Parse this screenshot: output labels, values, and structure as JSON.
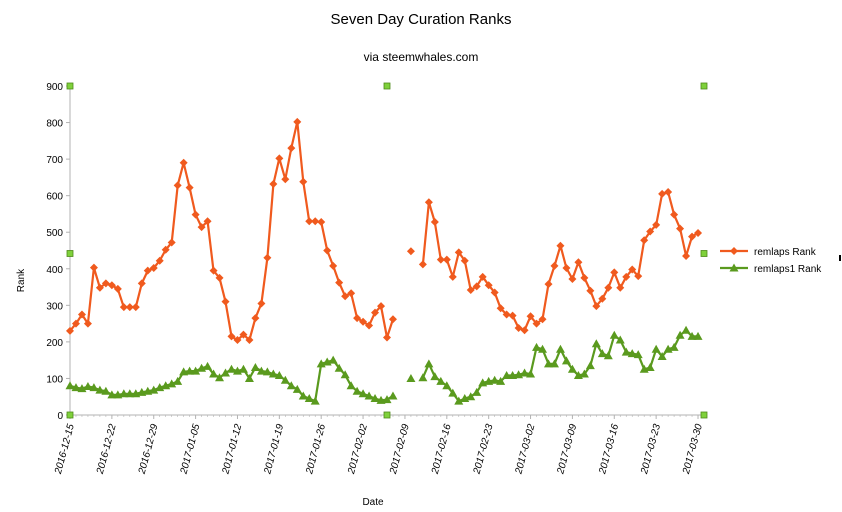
{
  "colors": {
    "series1": "#f05a1e",
    "series2": "#5a9a1e",
    "handle": "#7fd13b",
    "handle_border": "#4e8a1a",
    "axis": "#b3b3b3",
    "grid": "#dcdcdc"
  },
  "chart_data": {
    "type": "line",
    "title": "Seven Day Curation Ranks",
    "subtitle": "via steemwhales.com",
    "xlabel": "Date",
    "ylabel": "Rank",
    "ylim": [
      0,
      900
    ],
    "yticks": [
      0,
      100,
      200,
      300,
      400,
      500,
      600,
      700,
      800,
      900
    ],
    "grid": false,
    "legend": "right",
    "x_start": "2016-12-15",
    "x_end": "2017-03-31",
    "xticks": [
      "2016-12-15",
      "2016-12-22",
      "2016-12-29",
      "2017-01-05",
      "2017-01-12",
      "2017-01-19",
      "2017-01-26",
      "2017-02-02",
      "2017-02-09",
      "2017-02-16",
      "2017-02-23",
      "2017-03-02",
      "2017-03-09",
      "2017-03-16",
      "2017-03-23",
      "2017-03-30"
    ],
    "series": [
      {
        "name": "remlaps Rank",
        "marker": "diamond",
        "values": [
          230,
          250,
          275,
          250,
          403,
          348,
          360,
          355,
          345,
          295,
          295,
          295,
          360,
          395,
          402,
          422,
          452,
          472,
          628,
          690,
          622,
          548,
          514,
          530,
          395,
          375,
          310,
          215,
          205,
          220,
          205,
          265,
          305,
          430,
          632,
          702,
          645,
          730,
          802,
          638,
          530,
          530,
          528,
          450,
          408,
          362,
          325,
          333,
          265,
          255,
          245,
          280,
          298,
          212,
          262,
          null,
          null,
          448,
          null,
          412,
          582,
          528,
          425,
          425,
          378,
          445,
          422,
          342,
          352,
          378,
          355,
          335,
          292,
          275,
          272,
          238,
          232,
          270,
          250,
          262,
          358,
          408,
          463,
          402,
          372,
          418,
          375,
          340,
          298,
          318,
          348,
          390,
          348,
          378,
          398,
          380,
          478,
          502,
          520,
          605,
          610,
          548,
          510,
          435,
          488,
          498
        ],
        "start": "2016-12-15"
      },
      {
        "name": "remlaps1 Rank",
        "marker": "triangle",
        "values": [
          80,
          75,
          72,
          78,
          75,
          68,
          65,
          55,
          55,
          58,
          58,
          58,
          62,
          65,
          68,
          75,
          80,
          85,
          92,
          118,
          120,
          120,
          128,
          133,
          112,
          102,
          115,
          125,
          120,
          125,
          100,
          130,
          120,
          118,
          112,
          108,
          95,
          80,
          70,
          52,
          45,
          38,
          140,
          145,
          150,
          128,
          110,
          80,
          65,
          58,
          52,
          45,
          40,
          42,
          52,
          null,
          null,
          100,
          null,
          102,
          140,
          105,
          92,
          80,
          60,
          38,
          45,
          50,
          62,
          88,
          92,
          95,
          92,
          108,
          108,
          110,
          115,
          112,
          185,
          180,
          140,
          140,
          180,
          148,
          125,
          108,
          112,
          135,
          195,
          168,
          162,
          218,
          205,
          172,
          168,
          165,
          125,
          130,
          180,
          160,
          180,
          185,
          218,
          232,
          215,
          215
        ],
        "start": "2016-12-15"
      }
    ]
  }
}
